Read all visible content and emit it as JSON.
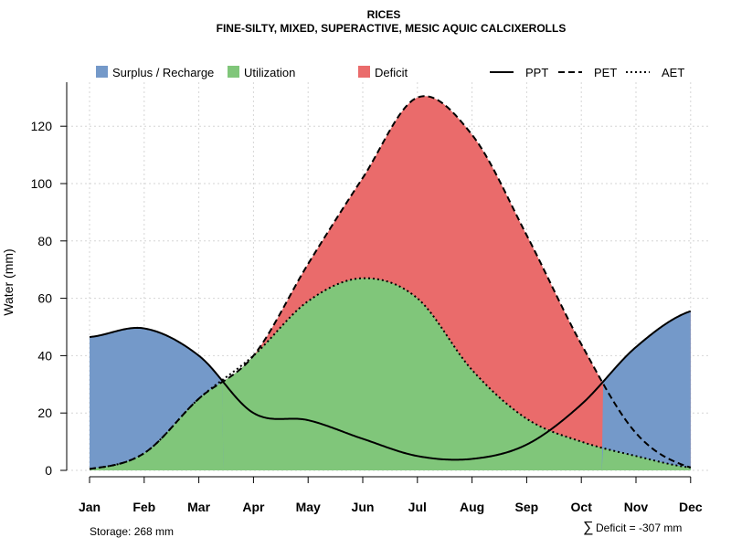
{
  "chart_data": {
    "type": "area",
    "title": "RICES",
    "subtitle": "FINE-SILTY, MIXED, SUPERACTIVE, MESIC AQUIC CALCIXEROLLS",
    "xlabel": "",
    "ylabel": "Water (mm)",
    "ylim": [
      0,
      135
    ],
    "yticks": [
      0,
      20,
      40,
      60,
      80,
      100,
      120
    ],
    "categories": [
      "Jan",
      "Feb",
      "Mar",
      "Apr",
      "May",
      "Jun",
      "Jul",
      "Aug",
      "Sep",
      "Oct",
      "Nov",
      "Dec"
    ],
    "grid": true,
    "legend_position": "top",
    "series": [
      {
        "name": "PPT",
        "style": "solid",
        "values": [
          46.5,
          49.5,
          40,
          20,
          17.5,
          11,
          5,
          4,
          9,
          23,
          43,
          55.5
        ]
      },
      {
        "name": "PET",
        "style": "dashed",
        "values": [
          0.5,
          6,
          25,
          40,
          72,
          102,
          130,
          117,
          82,
          44,
          13,
          1
        ]
      },
      {
        "name": "AET",
        "style": "dotted",
        "values": [
          0.5,
          6,
          25,
          40,
          59,
          67,
          60,
          35,
          18,
          10,
          5,
          1
        ]
      }
    ],
    "fills": [
      {
        "name": "Surplus / Recharge",
        "color": "#7499c9"
      },
      {
        "name": "Utilization",
        "color": "#80c67a"
      },
      {
        "name": "Deficit",
        "color": "#ea6b6b"
      }
    ],
    "legend": {
      "fills": [
        "Surplus / Recharge",
        "Utilization",
        "Deficit"
      ],
      "lines": [
        "PPT",
        "PET",
        "AET"
      ]
    },
    "annotations": {
      "storage": "Storage: 268 mm",
      "deficit": "Deficit = -307 mm",
      "deficit_symbol": "∑"
    }
  }
}
